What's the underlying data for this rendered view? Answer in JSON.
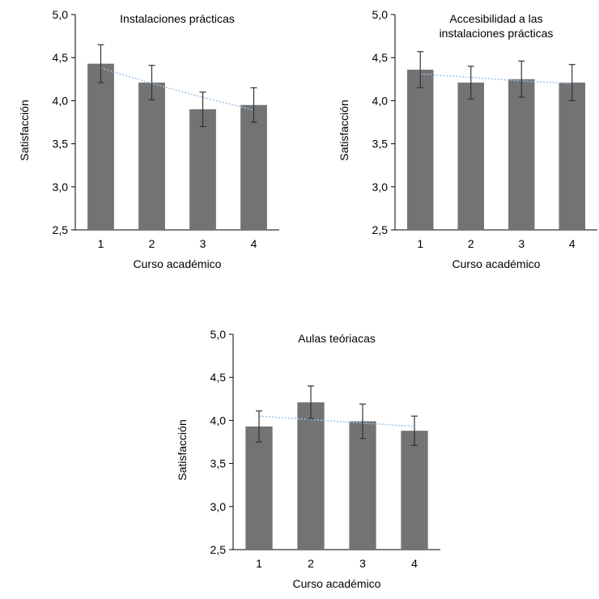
{
  "chart_data": [
    {
      "type": "bar",
      "title_lines": [
        "Instalaciones prácticas"
      ],
      "xlabel": "Curso académico",
      "ylabel": "Satisfacción",
      "categories": [
        "1",
        "2",
        "3",
        "4"
      ],
      "values": [
        4.43,
        4.21,
        3.9,
        3.95
      ],
      "errors": [
        0.22,
        0.2,
        0.2,
        0.2
      ],
      "trend": [
        4.38,
        4.2,
        4.04,
        3.89
      ],
      "ylim": [
        2.5,
        5.0
      ],
      "yticks": [
        2.5,
        3.0,
        3.5,
        4.0,
        4.5,
        5.0
      ],
      "ytick_labels": [
        "2,5",
        "3,0",
        "3,5",
        "4,0",
        "4,5",
        "5,0"
      ],
      "bar_color": "#737373",
      "trend_color": "#9dc3e6",
      "grid": false,
      "legend": "none"
    },
    {
      "type": "bar",
      "title_lines": [
        "Accesibilidad a las",
        "instalaciones prácticas"
      ],
      "xlabel": "Curso académico",
      "ylabel": "Satisfacción",
      "categories": [
        "1",
        "2",
        "3",
        "4"
      ],
      "values": [
        4.36,
        4.21,
        4.25,
        4.21
      ],
      "errors": [
        0.21,
        0.19,
        0.21,
        0.21
      ],
      "trend": [
        4.31,
        4.27,
        4.23,
        4.2
      ],
      "ylim": [
        2.5,
        5.0
      ],
      "yticks": [
        2.5,
        3.0,
        3.5,
        4.0,
        4.5,
        5.0
      ],
      "ytick_labels": [
        "2,5",
        "3,0",
        "3,5",
        "4,0",
        "4,5",
        "5,0"
      ],
      "bar_color": "#737373",
      "trend_color": "#9dc3e6",
      "grid": false,
      "legend": "none"
    },
    {
      "type": "bar",
      "title_lines": [
        "Aulas teóriacas"
      ],
      "xlabel": "Curso académico",
      "ylabel": "Satisfacción",
      "categories": [
        "1",
        "2",
        "3",
        "4"
      ],
      "values": [
        3.93,
        4.21,
        3.99,
        3.88
      ],
      "errors": [
        0.18,
        0.19,
        0.2,
        0.17
      ],
      "trend": [
        4.05,
        4.01,
        3.97,
        3.93
      ],
      "ylim": [
        2.5,
        5.0
      ],
      "yticks": [
        2.5,
        3.0,
        3.5,
        4.0,
        4.5,
        5.0
      ],
      "ytick_labels": [
        "2,5",
        "3,0",
        "3,5",
        "4,0",
        "4,5",
        "5,0"
      ],
      "bar_color": "#737373",
      "trend_color": "#9dc3e6",
      "grid": false,
      "legend": "none"
    }
  ]
}
